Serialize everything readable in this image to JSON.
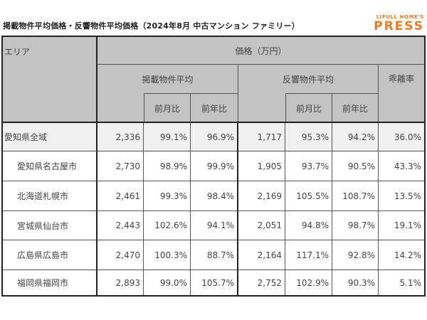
{
  "title": "掲載物件平均価格・反響物件平均価格（2024年8月 中古マンション ファミリー）",
  "logo": {
    "line1": "LIFULL HOME'S",
    "line2": "PRESS",
    "color": "#ee7a21"
  },
  "table": {
    "headers": {
      "area": "エリア",
      "price": "価格（万円）",
      "listed_avg": "掲載物件平均",
      "response_avg": "反響物件平均",
      "divergence": "乖離率",
      "mom": "前月比",
      "yoy": "前年比"
    },
    "rows": [
      {
        "area": "愛知県全域",
        "listed": "2,336",
        "listed_mom": "99.1%",
        "listed_yoy": "96.9%",
        "resp": "1,717",
        "resp_mom": "95.3%",
        "resp_yoy": "94.2%",
        "div": "36.0%"
      },
      {
        "area": "愛知県名古屋市",
        "listed": "2,730",
        "listed_mom": "98.9%",
        "listed_yoy": "99.9%",
        "resp": "1,905",
        "resp_mom": "93.7%",
        "resp_yoy": "90.5%",
        "div": "43.3%"
      },
      {
        "area": "北海道札幌市",
        "listed": "2,461",
        "listed_mom": "99.3%",
        "listed_yoy": "98.4%",
        "resp": "2,169",
        "resp_mom": "105.5%",
        "resp_yoy": "108.7%",
        "div": "13.5%"
      },
      {
        "area": "宮城県仙台市",
        "listed": "2,443",
        "listed_mom": "102.6%",
        "listed_yoy": "94.1%",
        "resp": "2,051",
        "resp_mom": "94.8%",
        "resp_yoy": "98.7%",
        "div": "19.1%"
      },
      {
        "area": "広島県広島市",
        "listed": "2,470",
        "listed_mom": "100.3%",
        "listed_yoy": "88.7%",
        "resp": "2,164",
        "resp_mom": "117.1%",
        "resp_yoy": "92.8%",
        "div": "14.2%"
      },
      {
        "area": "福岡県福岡市",
        "listed": "2,893",
        "listed_mom": "99.0%",
        "listed_yoy": "105.7%",
        "resp": "2,752",
        "resp_mom": "102.9%",
        "resp_yoy": "90.3%",
        "div": "5.1%"
      }
    ]
  }
}
